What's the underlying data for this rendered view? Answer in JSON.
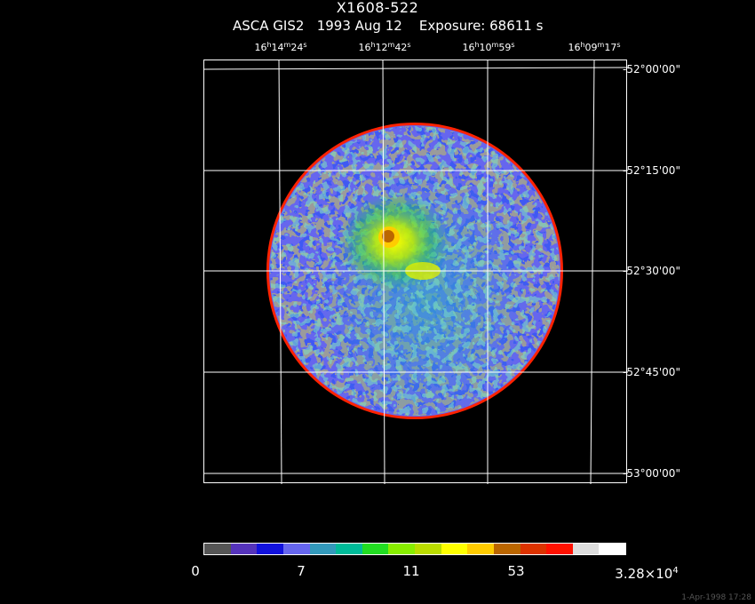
{
  "title": "X1608-522",
  "subtitle": "ASCA GIS2   1993 Aug 12    Exposure: 68611 s",
  "ra_ticks": [
    {
      "h": "16",
      "m": "14",
      "s": "24"
    },
    {
      "h": "16",
      "m": "12",
      "s": "42"
    },
    {
      "h": "16",
      "m": "10",
      "s": "59"
    },
    {
      "h": "16",
      "m": "09",
      "s": "17"
    }
  ],
  "dec_ticks": [
    "-52°00'00\"",
    "-52°15'00\"",
    "-52°30'00\"",
    "-52°45'00\"",
    "-53°00'00\""
  ],
  "colorbar": {
    "colors": [
      "#555555",
      "#5533bb",
      "#1111dd",
      "#6666ee",
      "#3399bb",
      "#00bb99",
      "#22dd22",
      "#88ee00",
      "#bbdd00",
      "#ffff00",
      "#ffcc00",
      "#bb6600",
      "#dd3300",
      "#ff1100",
      "#dddddd",
      "#ffffff"
    ],
    "labels": [
      {
        "text": "0"
      },
      {
        "text": "7"
      },
      {
        "text": "11"
      },
      {
        "text": "53"
      },
      {
        "text": "3.28×10",
        "exp": "4"
      }
    ]
  },
  "timestamp": "1-Apr-1998 17:28"
}
